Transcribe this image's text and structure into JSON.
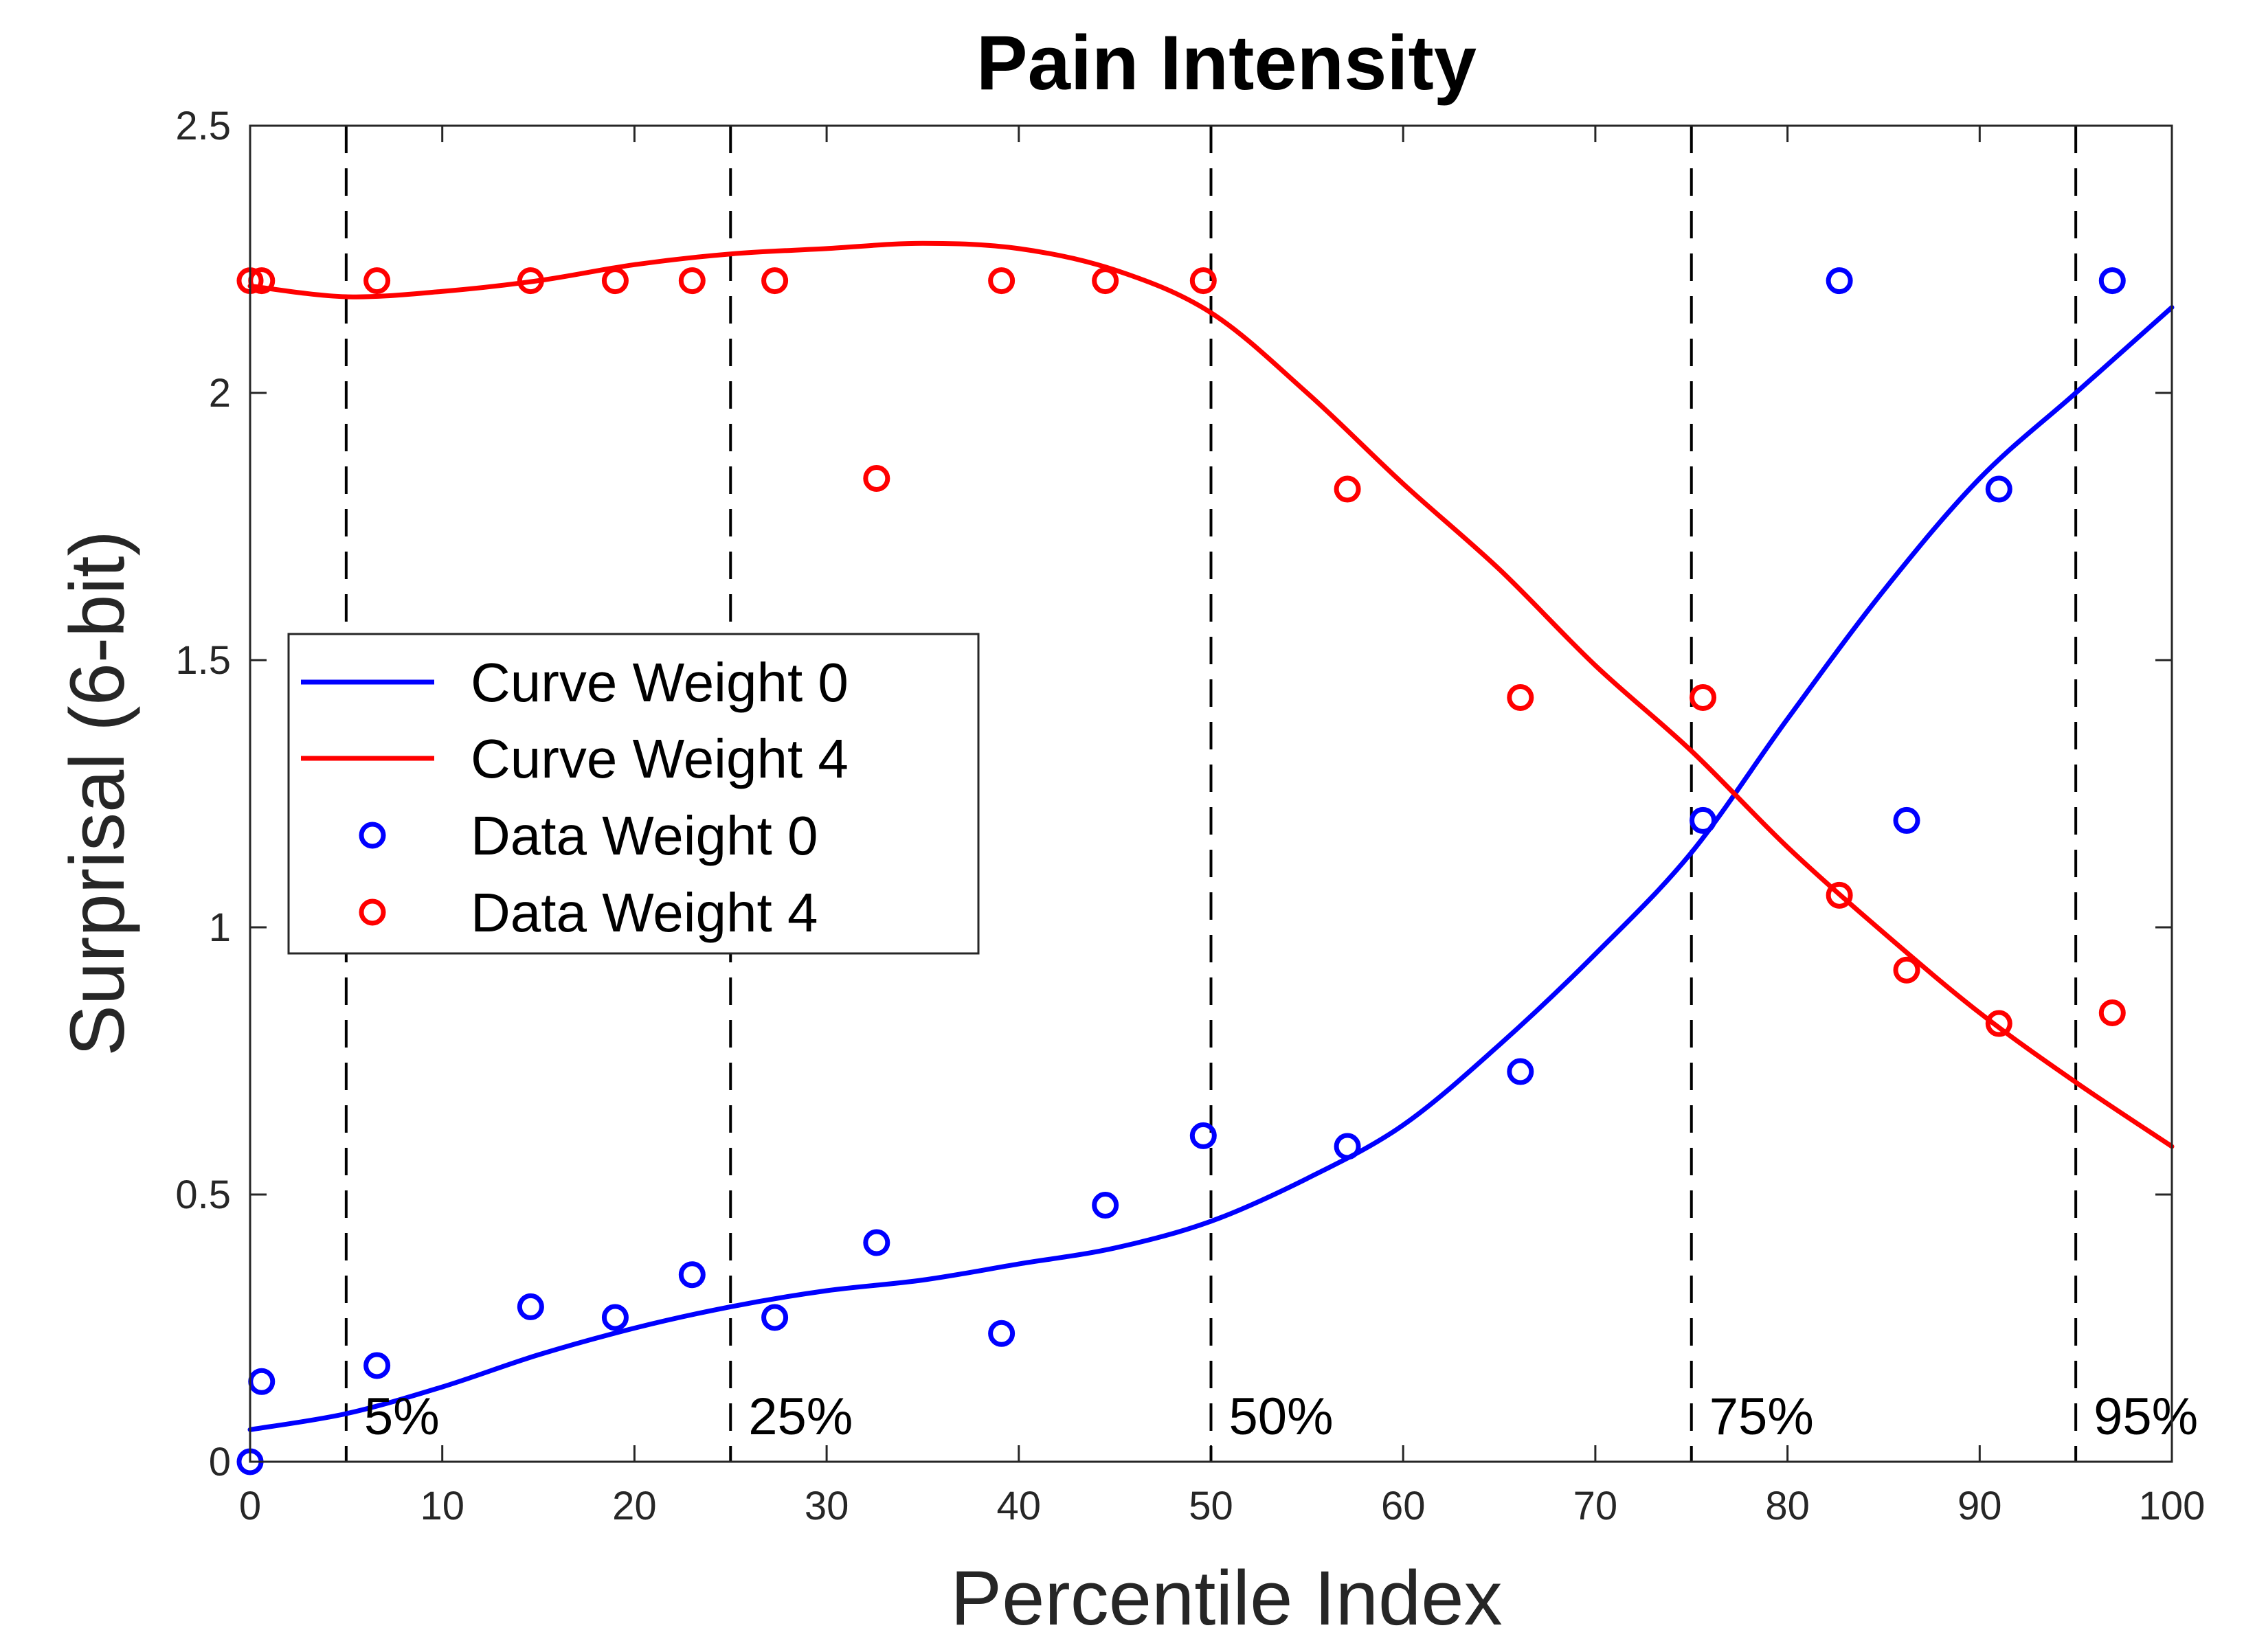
{
  "chart_data": {
    "type": "scatter",
    "title": "Pain Intensity",
    "xlabel": "Percentile Index",
    "ylabel": "Surprisal (6-bit)",
    "xlim": [
      0,
      100
    ],
    "ylim": [
      0,
      2.5
    ],
    "xticks": [
      0,
      10,
      20,
      30,
      40,
      50,
      60,
      70,
      80,
      90,
      100
    ],
    "xtick_labels": [
      "0",
      "10",
      "20",
      "30",
      "40",
      "50",
      "60",
      "70",
      "80",
      "90",
      "100"
    ],
    "yticks": [
      0,
      0.5,
      1,
      1.5,
      2,
      2.5
    ],
    "ytick_labels": [
      "0",
      "0.5",
      "1",
      "1.5",
      "2",
      "2.5"
    ],
    "legend_position": "middle-left",
    "percentile_lines": [
      {
        "x": 5,
        "label": "5%"
      },
      {
        "x": 25,
        "label": "25%"
      },
      {
        "x": 50,
        "label": "50%"
      },
      {
        "x": 75,
        "label": "75%"
      },
      {
        "x": 95,
        "label": "95%"
      }
    ],
    "series": [
      {
        "name": "Curve Weight 0",
        "kind": "line",
        "color": "#0000ff",
        "x": [
          0,
          5,
          10,
          15,
          20,
          25,
          30,
          35,
          40,
          45,
          50,
          55,
          60,
          65,
          70,
          75,
          80,
          85,
          90,
          95,
          100
        ],
        "y": [
          0.06,
          0.09,
          0.14,
          0.2,
          0.25,
          0.29,
          0.32,
          0.34,
          0.37,
          0.4,
          0.45,
          0.53,
          0.63,
          0.78,
          0.95,
          1.14,
          1.39,
          1.63,
          1.84,
          2.0,
          2.16
        ]
      },
      {
        "name": "Curve Weight 4",
        "kind": "line",
        "color": "#ff0000",
        "x": [
          0,
          5,
          10,
          15,
          20,
          25,
          30,
          35,
          40,
          45,
          50,
          55,
          60,
          65,
          70,
          75,
          80,
          85,
          90,
          95,
          100
        ],
        "y": [
          2.2,
          2.18,
          2.19,
          2.21,
          2.24,
          2.26,
          2.27,
          2.28,
          2.27,
          2.23,
          2.15,
          2.0,
          1.83,
          1.67,
          1.49,
          1.33,
          1.15,
          0.99,
          0.84,
          0.71,
          0.59
        ]
      },
      {
        "name": "Data  Weight 0",
        "kind": "scatter",
        "color": "#0000ff",
        "x": [
          0,
          0.6,
          6.6,
          14.6,
          19,
          23,
          27.3,
          32.6,
          39.1,
          44.5,
          49.6,
          57.1,
          66.1,
          75.6,
          82.7,
          86.2,
          91.0,
          96.9
        ],
        "y": [
          0.0,
          0.15,
          0.18,
          0.29,
          0.27,
          0.35,
          0.27,
          0.41,
          0.24,
          0.48,
          0.61,
          0.59,
          0.73,
          1.2,
          2.21,
          1.2,
          1.82,
          2.21
        ]
      },
      {
        "name": "Data  Weight 4",
        "kind": "scatter",
        "color": "#ff0000",
        "x": [
          0,
          0.6,
          6.6,
          14.6,
          19,
          23,
          27.3,
          32.6,
          39.1,
          44.5,
          49.6,
          57.1,
          66.1,
          75.6,
          82.7,
          86.2,
          91.0,
          96.9
        ],
        "y": [
          2.21,
          2.21,
          2.21,
          2.21,
          2.21,
          2.21,
          2.21,
          1.84,
          2.21,
          2.21,
          2.21,
          1.82,
          1.43,
          1.43,
          1.06,
          0.92,
          0.82,
          0.84
        ]
      }
    ]
  }
}
